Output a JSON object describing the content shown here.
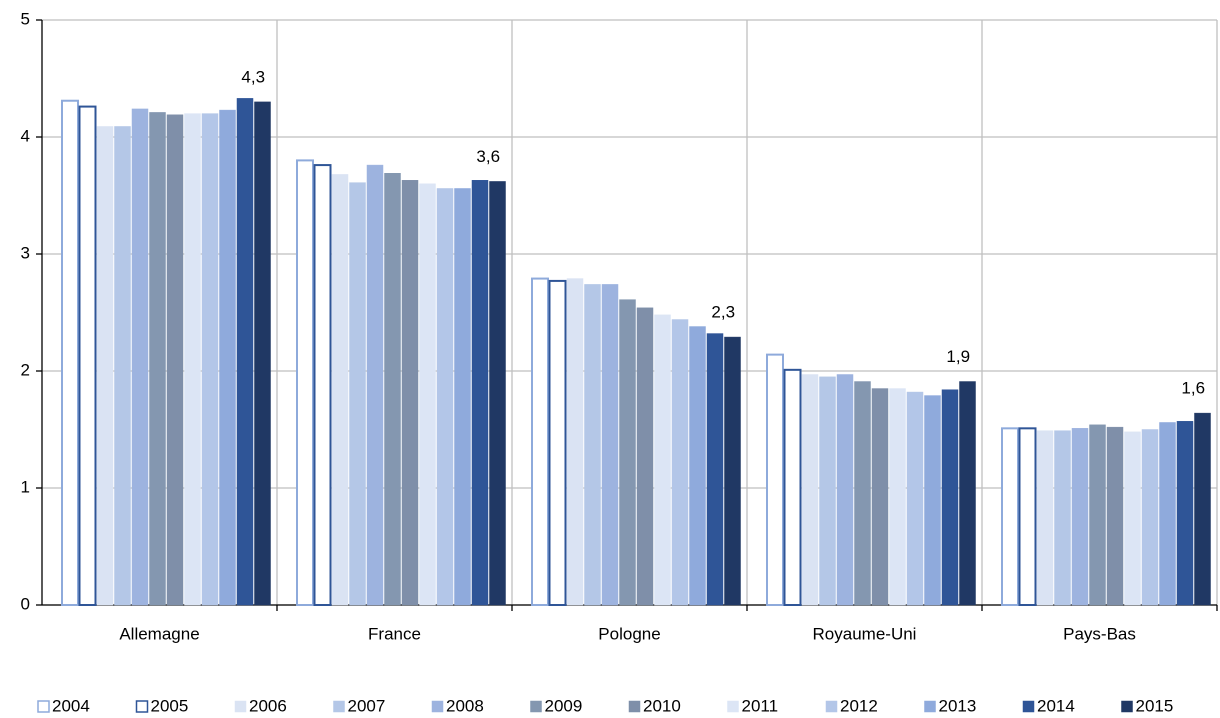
{
  "chart_data": {
    "type": "bar",
    "categories": [
      "Allemagne",
      "France",
      "Pologne",
      "Royaume-Uni",
      "Pays-Bas"
    ],
    "series": [
      {
        "name": "2004",
        "color": "#8eaadb",
        "values": [
          4.31,
          3.8,
          2.79,
          2.14,
          1.51
        ]
      },
      {
        "name": "2005",
        "color": "#2f5597",
        "values": [
          4.26,
          3.76,
          2.77,
          2.01,
          1.51
        ]
      },
      {
        "name": "2006",
        "color": "#dae3f3",
        "values": [
          4.09,
          3.68,
          2.79,
          1.97,
          1.49
        ]
      },
      {
        "name": "2007",
        "color": "#b4c7e7",
        "values": [
          4.09,
          3.61,
          2.74,
          1.95,
          1.49
        ]
      },
      {
        "name": "2008",
        "color": "#9db3df",
        "values": [
          4.24,
          3.76,
          2.74,
          1.97,
          1.51
        ]
      },
      {
        "name": "2009",
        "color": "#8497b0",
        "values": [
          4.21,
          3.69,
          2.61,
          1.91,
          1.54
        ]
      },
      {
        "name": "2010",
        "color": "#7f8fa9",
        "values": [
          4.19,
          3.63,
          2.54,
          1.85,
          1.52
        ]
      },
      {
        "name": "2011",
        "color": "#dce5f5",
        "values": [
          4.2,
          3.6,
          2.48,
          1.85,
          1.48
        ]
      },
      {
        "name": "2012",
        "color": "#b3c6e8",
        "values": [
          4.2,
          3.56,
          2.44,
          1.82,
          1.5
        ]
      },
      {
        "name": "2013",
        "color": "#8faadc",
        "values": [
          4.23,
          3.56,
          2.38,
          1.79,
          1.56
        ]
      },
      {
        "name": "2014",
        "color": "#2f5597",
        "values": [
          4.33,
          3.63,
          2.32,
          1.84,
          1.57
        ]
      },
      {
        "name": "2015",
        "color": "#203864",
        "values": [
          4.3,
          3.62,
          2.29,
          1.91,
          1.64
        ],
        "value_labels": [
          "4,3",
          "3,6",
          "2,3",
          "1,9",
          "1,6"
        ]
      }
    ],
    "ylim": [
      0,
      5
    ],
    "yticks": [
      0,
      1,
      2,
      3,
      4,
      5
    ],
    "grid": true
  }
}
